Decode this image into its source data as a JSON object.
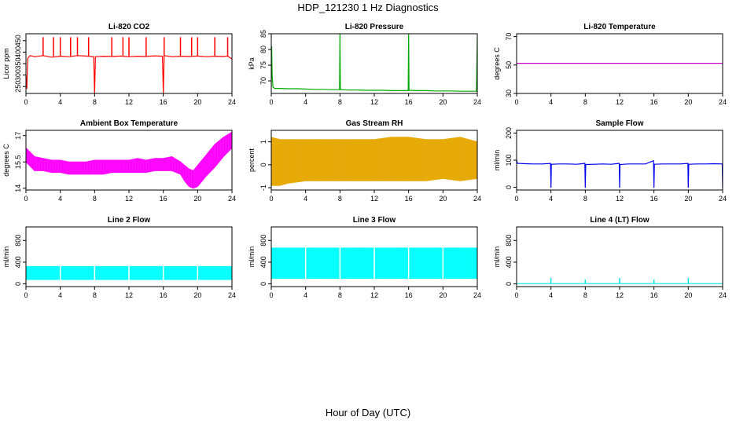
{
  "figure": {
    "title": "HDP_121230  1 Hz Diagnostics",
    "xlabel": "Hour of Day (UTC)"
  },
  "chart_data": [
    {
      "type": "line",
      "title": "Li-820 CO2",
      "ylabel": "Licor ppm",
      "xlim": [
        0,
        24
      ],
      "ylim": [
        220,
        480
      ],
      "xticks": [
        0,
        4,
        8,
        12,
        16,
        20,
        24
      ],
      "yticks": [
        250,
        300,
        350,
        400,
        450
      ],
      "color": "#ff0000",
      "series": [
        {
          "x": [
            0,
            0.1,
            0.2,
            0.3,
            0.5,
            1.0,
            2.0,
            3.0,
            4.0,
            5.0,
            6.0,
            7.0,
            7.9,
            8.0,
            8.1,
            9.0,
            10.0,
            11.0,
            12.0,
            13.0,
            14.0,
            15.0,
            15.9,
            16.0,
            16.1,
            17.0,
            18.0,
            19.0,
            20.0,
            21.0,
            22.0,
            23.0,
            23.5,
            24.0
          ],
          "y": [
            300,
            240,
            370,
            378,
            385,
            380,
            385,
            378,
            382,
            380,
            385,
            383,
            380,
            220,
            380,
            382,
            381,
            383,
            380,
            382,
            381,
            384,
            382,
            220,
            385,
            380,
            382,
            381,
            383,
            380,
            382,
            381,
            383,
            370
          ]
        }
      ],
      "spikes_x": [
        2.0,
        3.2,
        4.0,
        5.2,
        6.0,
        7.3,
        10.0,
        11.3,
        12.0,
        14.0,
        16.1,
        18.0,
        19.3,
        20.0,
        22.0,
        23.5
      ],
      "spike_peak": 465
    },
    {
      "type": "line",
      "title": "Li-820 Pressure",
      "ylabel": "kPa",
      "xlim": [
        0,
        24
      ],
      "ylim": [
        66,
        85
      ],
      "xticks": [
        0,
        4,
        8,
        12,
        16,
        20,
        24
      ],
      "yticks": [
        70,
        75,
        80,
        85
      ],
      "color": "#00aa00",
      "series": [
        {
          "x": [
            0,
            0.05,
            0.1,
            0.2,
            0.4,
            1,
            2,
            3,
            4,
            5,
            6,
            7,
            7.95,
            8.0,
            8.05,
            9,
            10,
            11,
            12,
            13,
            14,
            15,
            15.95,
            16.0,
            16.05,
            17,
            18,
            19,
            20,
            21,
            22,
            23,
            23.9,
            24.0
          ],
          "y": [
            68,
            81,
            72,
            68,
            67.6,
            67.6,
            67.5,
            67.5,
            67.4,
            67.3,
            67.3,
            67.2,
            67.2,
            85,
            67.2,
            67.1,
            67.1,
            67.0,
            67.0,
            67.0,
            66.9,
            66.9,
            66.9,
            85,
            67.0,
            66.9,
            66.9,
            66.8,
            66.8,
            66.8,
            66.7,
            66.7,
            66.7,
            84
          ]
        }
      ]
    },
    {
      "type": "line",
      "title": "Li-820 Temperature",
      "ylabel": "degrees C",
      "xlim": [
        0,
        24
      ],
      "ylim": [
        30,
        72
      ],
      "xticks": [
        0,
        4,
        8,
        12,
        16,
        20,
        24
      ],
      "yticks": [
        30,
        50,
        70
      ],
      "color": "#cc00cc",
      "series": [
        {
          "x": [
            0,
            24
          ],
          "y": [
            51.2,
            51.2
          ]
        }
      ]
    },
    {
      "type": "area",
      "title": "Ambient Box Temperature",
      "ylabel": "degrees C",
      "xlim": [
        0,
        24
      ],
      "ylim": [
        13.9,
        17.3
      ],
      "xticks": [
        0,
        4,
        8,
        12,
        16,
        20,
        24
      ],
      "yticks": [
        14.0,
        15.5,
        17.0
      ],
      "color": "#ff00ff",
      "band": {
        "x": [
          0,
          1,
          2,
          3,
          4,
          5,
          6,
          7,
          8,
          9,
          10,
          11,
          12,
          13,
          14,
          15,
          16,
          17,
          18,
          18.5,
          19,
          19.5,
          20,
          21,
          22,
          23,
          24
        ],
        "lower": [
          15.5,
          15.0,
          15.0,
          14.9,
          14.9,
          14.8,
          14.8,
          14.8,
          14.8,
          14.8,
          14.9,
          14.9,
          14.9,
          14.9,
          14.9,
          15.0,
          15.0,
          15.0,
          14.8,
          14.4,
          14.1,
          14.0,
          14.1,
          14.7,
          15.2,
          15.8,
          16.3
        ],
        "upper": [
          16.3,
          15.8,
          15.7,
          15.6,
          15.6,
          15.5,
          15.5,
          15.5,
          15.6,
          15.6,
          15.6,
          15.6,
          15.6,
          15.7,
          15.6,
          15.7,
          15.7,
          15.8,
          15.5,
          15.3,
          15.1,
          15.0,
          15.3,
          15.9,
          16.5,
          16.9,
          17.2
        ]
      }
    },
    {
      "type": "area",
      "title": "Gas Stream RH",
      "ylabel": "percent",
      "xlim": [
        0,
        24
      ],
      "ylim": [
        -1.1,
        1.5
      ],
      "xticks": [
        0,
        4,
        8,
        12,
        16,
        20,
        24
      ],
      "yticks": [
        -1.0,
        0.0,
        1.0
      ],
      "color": "#e6a800",
      "band": {
        "x": [
          0,
          1,
          2,
          4,
          6,
          8,
          10,
          12,
          14,
          16,
          18,
          20,
          22,
          24
        ],
        "lower": [
          -0.9,
          -0.9,
          -0.8,
          -0.7,
          -0.7,
          -0.7,
          -0.7,
          -0.7,
          -0.7,
          -0.7,
          -0.7,
          -0.6,
          -0.7,
          -0.6
        ],
        "upper": [
          1.2,
          1.1,
          1.1,
          1.1,
          1.1,
          1.1,
          1.1,
          1.1,
          1.2,
          1.2,
          1.1,
          1.1,
          1.2,
          1.0
        ]
      }
    },
    {
      "type": "line",
      "title": "Sample Flow",
      "ylabel": "ml/min",
      "xlim": [
        0,
        24
      ],
      "ylim": [
        -10,
        210
      ],
      "xticks": [
        0,
        4,
        8,
        12,
        16,
        20,
        24
      ],
      "yticks": [
        0,
        100,
        200
      ],
      "color": "#0000ee",
      "series": [
        {
          "x": [
            0,
            0.1,
            1,
            2,
            3,
            3.95,
            4.0,
            4.05,
            5,
            6,
            7,
            7.95,
            8.0,
            8.05,
            9,
            10,
            11,
            11.95,
            12.0,
            12.05,
            13,
            14,
            15,
            15.95,
            16.0,
            16.05,
            17,
            18,
            19,
            19.95,
            20.0,
            20.05,
            21,
            22,
            23,
            23.95,
            24.0
          ],
          "y": [
            100,
            88,
            87,
            86,
            86,
            88,
            -2,
            85,
            86,
            86,
            85,
            88,
            -2,
            84,
            85,
            86,
            85,
            88,
            -2,
            84,
            86,
            86,
            86,
            98,
            -2,
            85,
            86,
            86,
            86,
            88,
            -2,
            85,
            86,
            86,
            87,
            86,
            -2
          ]
        }
      ]
    },
    {
      "type": "area",
      "title": "Line 2 Flow",
      "ylabel": "ml/min",
      "xlim": [
        0,
        24
      ],
      "ylim": [
        -50,
        1050
      ],
      "xticks": [
        0,
        4,
        8,
        12,
        16,
        20,
        24
      ],
      "yticks": [
        0,
        400,
        800
      ],
      "color": "#00ffff",
      "band": {
        "x": [
          0,
          24
        ],
        "lower": [
          80,
          80
        ],
        "upper": [
          320,
          320
        ]
      },
      "gaps_x": [
        4,
        8,
        12,
        16,
        20
      ]
    },
    {
      "type": "area",
      "title": "Line 3 Flow",
      "ylabel": "ml/min",
      "xlim": [
        0,
        24
      ],
      "ylim": [
        -50,
        1050
      ],
      "xticks": [
        0,
        4,
        8,
        12,
        16,
        20,
        24
      ],
      "yticks": [
        0,
        400,
        800
      ],
      "color": "#00ffff",
      "band": {
        "x": [
          0,
          24
        ],
        "lower": [
          100,
          100
        ],
        "upper": [
          660,
          660
        ]
      },
      "gaps_x": [
        4,
        8,
        12,
        16,
        20
      ]
    },
    {
      "type": "line",
      "title": "Line 4 (LT) Flow",
      "ylabel": "ml/min",
      "xlim": [
        0,
        24
      ],
      "ylim": [
        -50,
        1050
      ],
      "xticks": [
        0,
        4,
        8,
        12,
        16,
        20,
        24
      ],
      "yticks": [
        0,
        400,
        800
      ],
      "color": "#00e5e5",
      "series": [
        {
          "x": [
            0,
            24
          ],
          "y": [
            5,
            5
          ]
        }
      ],
      "spikes_x": [
        4,
        8,
        12,
        16,
        20
      ],
      "spike_values": [
        110,
        80,
        110,
        80,
        110
      ]
    }
  ]
}
